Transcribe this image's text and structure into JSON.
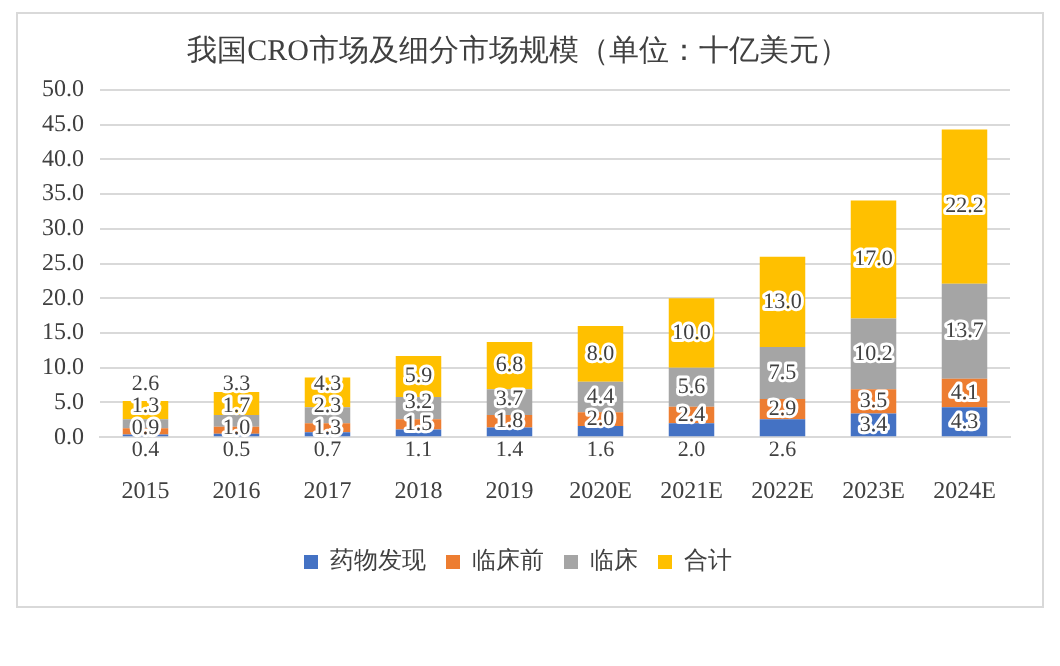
{
  "chart_data": {
    "type": "bar",
    "title": "我国CRO市场及细分市场规模（单位：十亿美元）",
    "categories": [
      "2015",
      "2016",
      "2017",
      "2018",
      "2019",
      "2020E",
      "2021E",
      "2022E",
      "2023E",
      "2024E"
    ],
    "stacked": true,
    "series": [
      {
        "name": "药物发现",
        "color": "#4472c4",
        "values": [
          0.4,
          0.5,
          0.7,
          1.1,
          1.4,
          1.6,
          2.0,
          2.6,
          3.4,
          4.3
        ],
        "value_labels": [
          "0.4",
          "0.5",
          "0.7",
          "1.1",
          "1.4",
          "1.6",
          "2.0",
          "2.6",
          "3.4",
          "4.3"
        ]
      },
      {
        "name": "临床前",
        "color": "#ed7d31",
        "values": [
          0.9,
          1.0,
          1.3,
          1.5,
          1.8,
          2.0,
          2.4,
          2.9,
          3.5,
          4.1
        ],
        "value_labels": [
          "0.9",
          "1.0",
          "1.3",
          "1.5",
          "1.8",
          "2.0",
          "2.4",
          "2.9",
          "3.5",
          "4.1"
        ]
      },
      {
        "name": "临床",
        "color": "#a5a5a5",
        "values": [
          1.3,
          1.7,
          2.3,
          3.2,
          3.7,
          4.4,
          5.6,
          7.5,
          10.2,
          13.7
        ],
        "value_labels": [
          "1.3",
          "1.7",
          "2.3",
          "3.2",
          "3.7",
          "4.4",
          "5.6",
          "7.5",
          "10.2",
          "13.7"
        ]
      },
      {
        "name": "合计",
        "color": "#ffc000",
        "values": [
          2.6,
          3.3,
          4.3,
          5.9,
          6.8,
          8.0,
          10.0,
          13.0,
          17.0,
          22.2
        ],
        "value_labels": [
          "2.6",
          "3.3",
          "4.3",
          "5.9",
          "6.8",
          "8.0",
          "10.0",
          "13.0",
          "17.0",
          "22.2"
        ]
      }
    ],
    "ylim": [
      0,
      50
    ],
    "yticks": [
      {
        "value": 0,
        "label": "0.0"
      },
      {
        "value": 5,
        "label": "5.0"
      },
      {
        "value": 10,
        "label": "10.0"
      },
      {
        "value": 15,
        "label": "15.0"
      },
      {
        "value": 20,
        "label": "20.0"
      },
      {
        "value": 25,
        "label": "25.0"
      },
      {
        "value": 30,
        "label": "30.0"
      },
      {
        "value": 35,
        "label": "35.0"
      },
      {
        "value": 40,
        "label": "40.0"
      },
      {
        "value": 45,
        "label": "45.0"
      },
      {
        "value": 50,
        "label": "50.0"
      }
    ],
    "grid": "y",
    "legend": "bottom"
  }
}
